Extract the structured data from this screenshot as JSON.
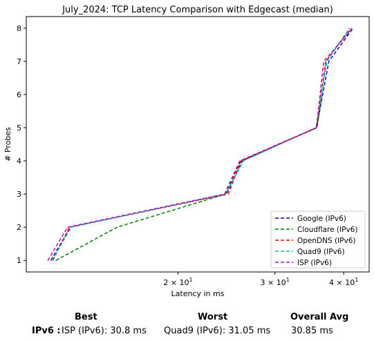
{
  "chart_data": {
    "type": "line",
    "title": "July_2024: TCP Latency Comparison with Edgecast (median)",
    "xlabel": "Latency in ms",
    "ylabel": "# Probes",
    "x_scale": "log",
    "xlim": [
      10.6,
      44.5
    ],
    "ylim": [
      0.65,
      8.35
    ],
    "yticks": [
      1,
      2,
      3,
      4,
      5,
      6,
      7,
      8
    ],
    "xticks": [
      {
        "value": 20,
        "base": "2",
        "exp": "1"
      },
      {
        "value": 30,
        "base": "3",
        "exp": "1"
      },
      {
        "value": 40,
        "base": "4",
        "exp": "1"
      }
    ],
    "legend_position": "lower right",
    "series": [
      {
        "name": "Google (IPv6)",
        "color": "#0000cc",
        "x": [
          11.75,
          12.75,
          24.5,
          26.15,
          35.7,
          37.6,
          41.6
        ],
        "y": [
          1,
          2,
          3,
          4,
          5,
          7,
          8
        ]
      },
      {
        "name": "Cloudflare (IPv6)",
        "color": "#008000",
        "x": [
          12.0,
          15.5,
          24.4,
          26.0,
          35.8,
          37.2,
          41.0
        ],
        "y": [
          1,
          2,
          3,
          4,
          5,
          7,
          8
        ]
      },
      {
        "name": "OpenDNS (IPv6)",
        "color": "#ff0000",
        "x": [
          11.85,
          12.7,
          24.7,
          26.0,
          35.7,
          37.1,
          41.3
        ],
        "y": [
          1,
          2,
          3,
          4,
          5,
          7,
          8
        ]
      },
      {
        "name": "Quad9 (IPv6)",
        "color": "#00bfbf",
        "x": [
          11.8,
          12.8,
          24.4,
          26.3,
          35.6,
          37.3,
          41.0
        ],
        "y": [
          1,
          2,
          3,
          4,
          5,
          7,
          8
        ]
      },
      {
        "name": "ISP (IPv6)",
        "color": "#bf00bf",
        "x": [
          11.6,
          12.6,
          24.3,
          25.9,
          35.7,
          36.8,
          41.5
        ],
        "y": [
          1,
          2,
          3,
          4,
          5,
          7,
          8
        ]
      }
    ]
  },
  "summary": {
    "best_header": "Best",
    "worst_header": "Worst",
    "avg_header": "Overall Avg",
    "row_label": "IPv6 :",
    "best_value": "ISP (IPv6): 30.8 ms",
    "worst_value": "Quad9 (IPv6): 31.05 ms",
    "avg_value": "30.85 ms"
  }
}
